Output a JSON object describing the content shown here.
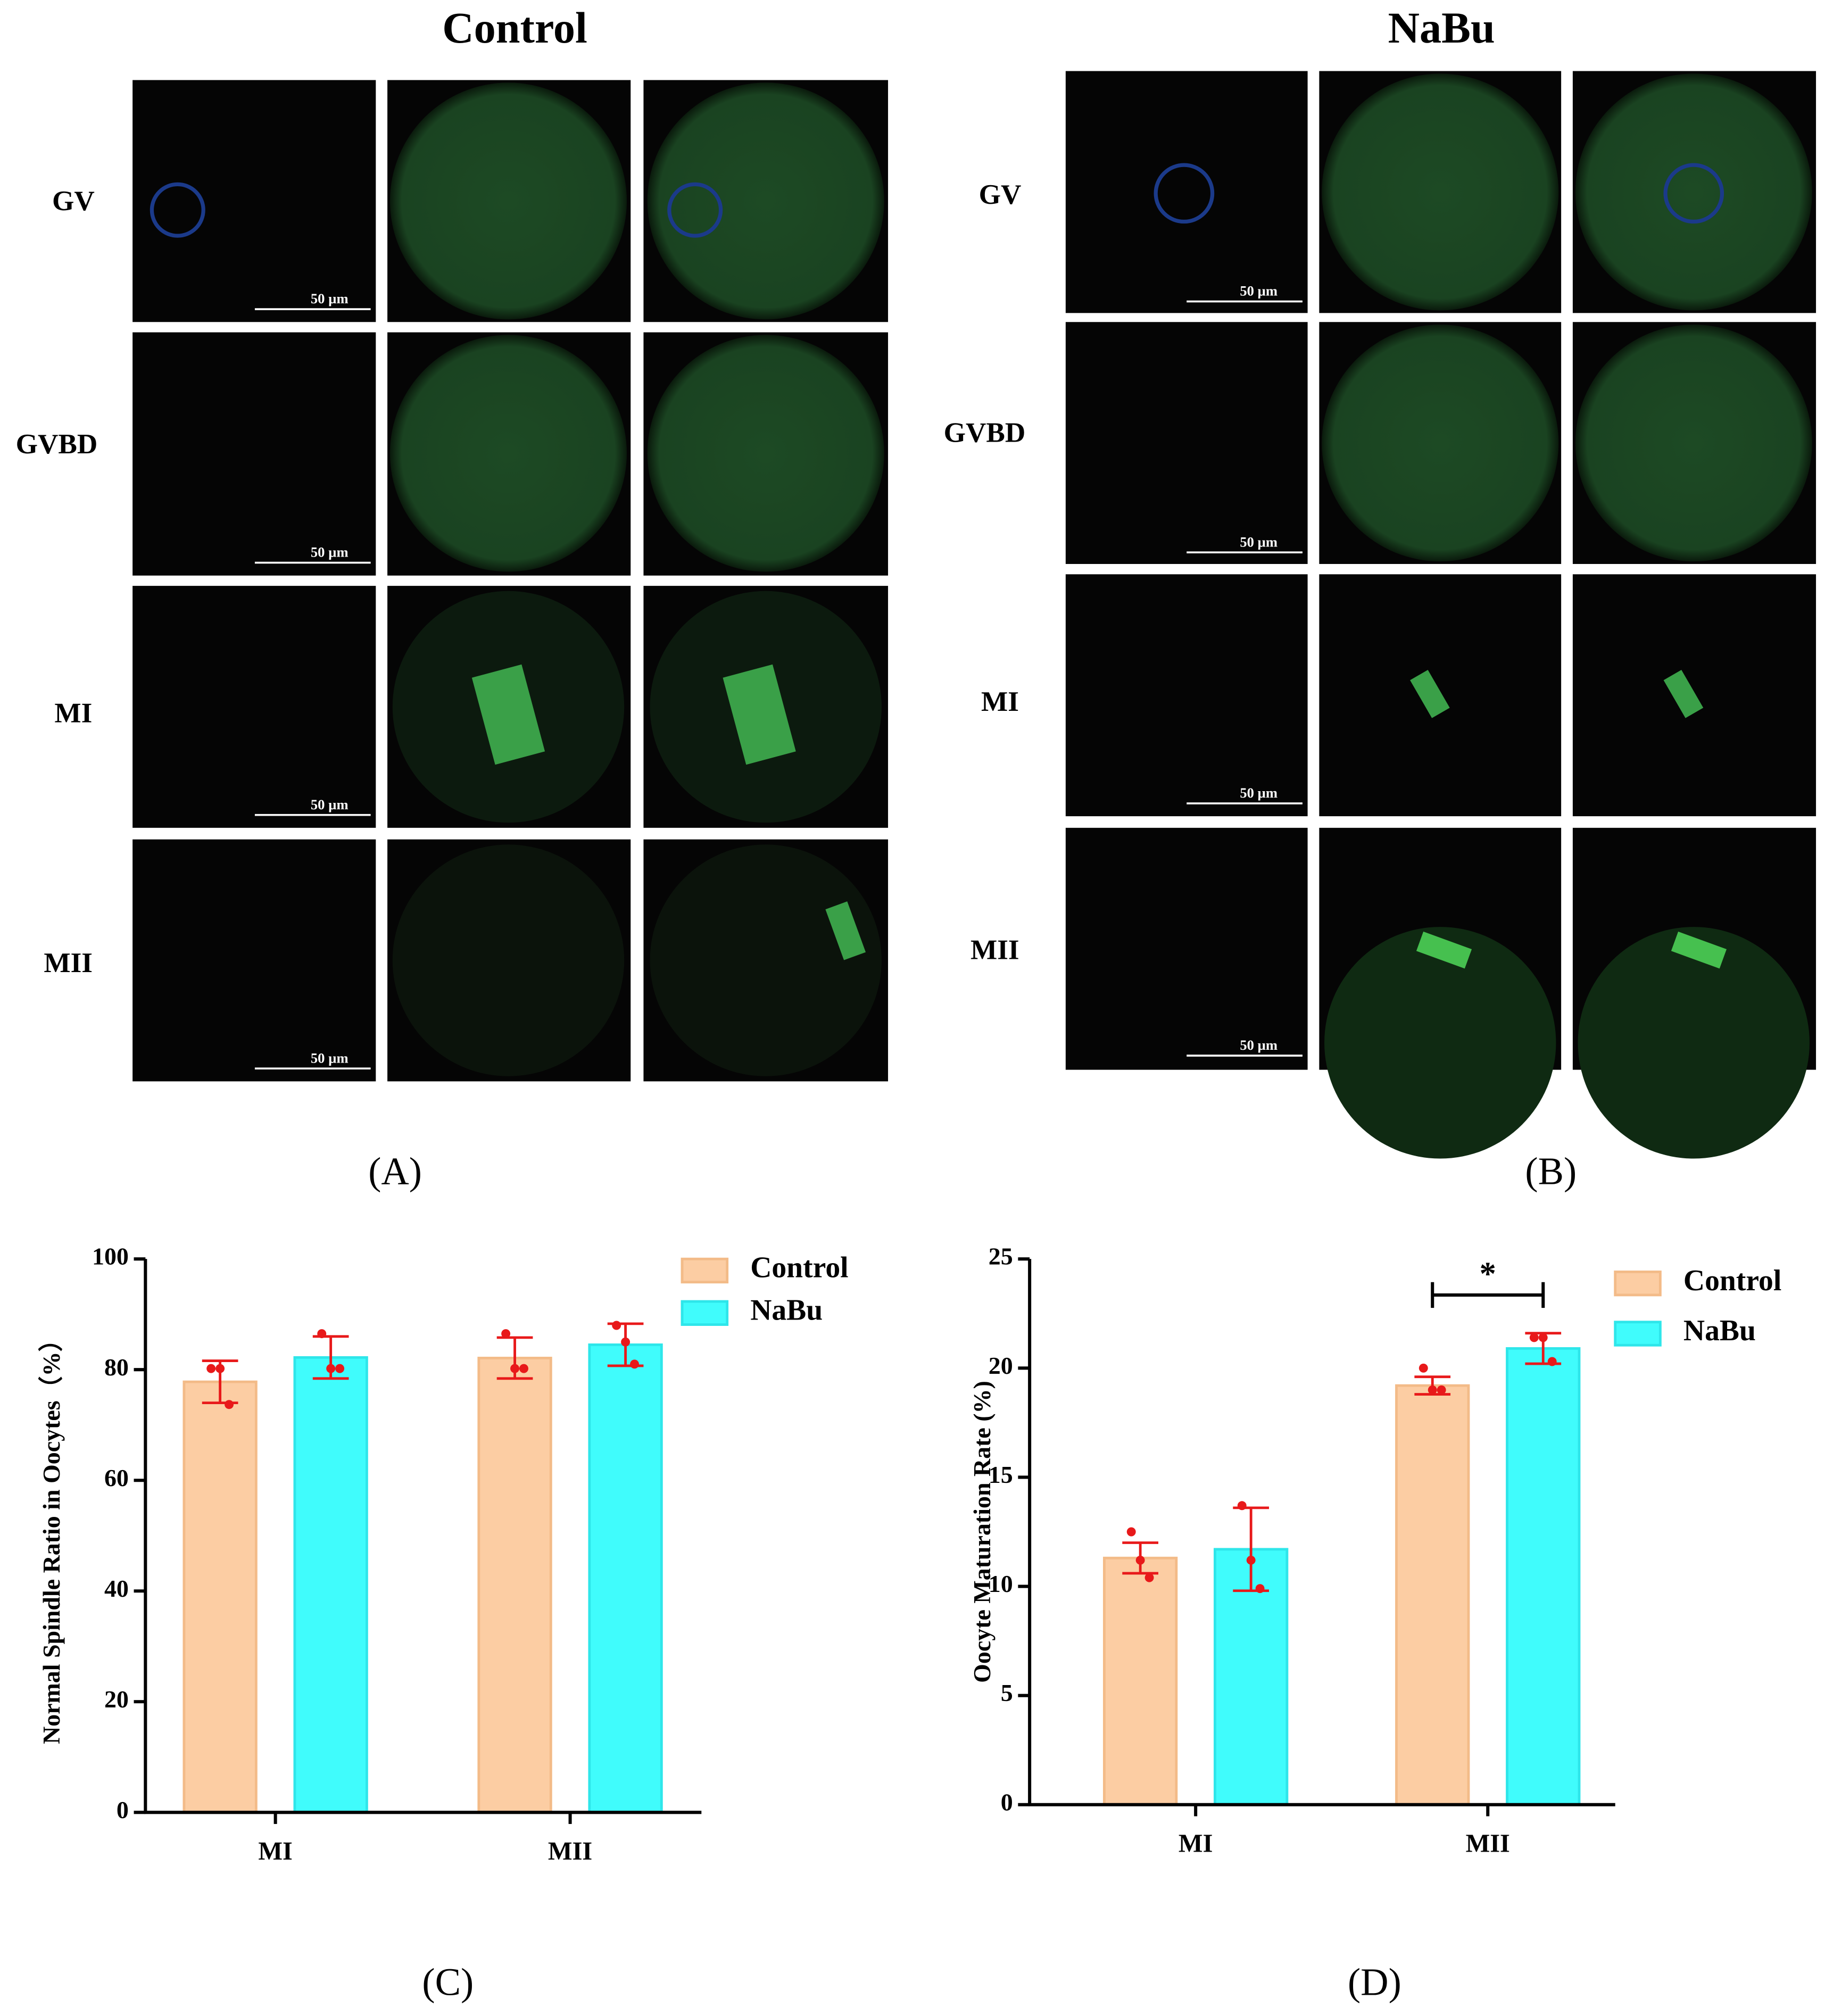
{
  "panels": {
    "A": {
      "title": "Control",
      "rows": [
        "GV",
        "GVBD",
        "MI",
        "MII"
      ],
      "scale_bar": "50 µm",
      "label": "(A)"
    },
    "B": {
      "title": "NaBu",
      "rows": [
        "GV",
        "GVBD",
        "MI",
        "MII"
      ],
      "scale_bar": "50 µm",
      "label": "(B)"
    }
  },
  "panel_labels": [
    "(C)",
    "(D)"
  ],
  "chart_data": [
    {
      "type": "bar",
      "ylabel": "Normal Spindle Ratio in Oocytes（%）",
      "categories": [
        "MI",
        "MII"
      ],
      "ylim": [
        0,
        100
      ],
      "yticks": [
        0,
        20,
        40,
        60,
        80,
        100
      ],
      "error_color": "#e8191a",
      "series": [
        {
          "name": "Control",
          "color": "#fccda3",
          "values": [
            77.8,
            82.1
          ],
          "errors": [
            3.8,
            3.7
          ],
          "points": [
            [
              80.2,
              80.2,
              73.7
            ],
            [
              86.5,
              80.2,
              80.2
            ]
          ]
        },
        {
          "name": "NaBu",
          "color": "#40fcfc",
          "values": [
            82.2,
            84.5
          ],
          "errors": [
            3.8,
            3.8
          ],
          "points": [
            [
              86.5,
              80.2,
              80.2
            ],
            [
              88,
              85,
              81
            ]
          ]
        }
      ]
    },
    {
      "type": "bar",
      "ylabel": "Oocyte Maturation Rate (%)",
      "categories": [
        "MI",
        "MII"
      ],
      "ylim": [
        0,
        25
      ],
      "yticks": [
        0,
        5,
        10,
        15,
        20,
        25
      ],
      "error_color": "#e8191a",
      "annotation": "*",
      "series": [
        {
          "name": "Control",
          "color": "#fccda3",
          "values": [
            11.3,
            19.2
          ],
          "errors": [
            0.7,
            0.4
          ],
          "points": [
            [
              12.5,
              11.2,
              10.4
            ],
            [
              20,
              19,
              19
            ]
          ]
        },
        {
          "name": "NaBu",
          "color": "#40fcfc",
          "values": [
            11.7,
            20.9
          ],
          "errors": [
            1.9,
            0.7
          ],
          "points": [
            [
              13.7,
              11.2,
              9.9
            ],
            [
              21.4,
              21.4,
              20.3
            ]
          ]
        }
      ]
    }
  ]
}
